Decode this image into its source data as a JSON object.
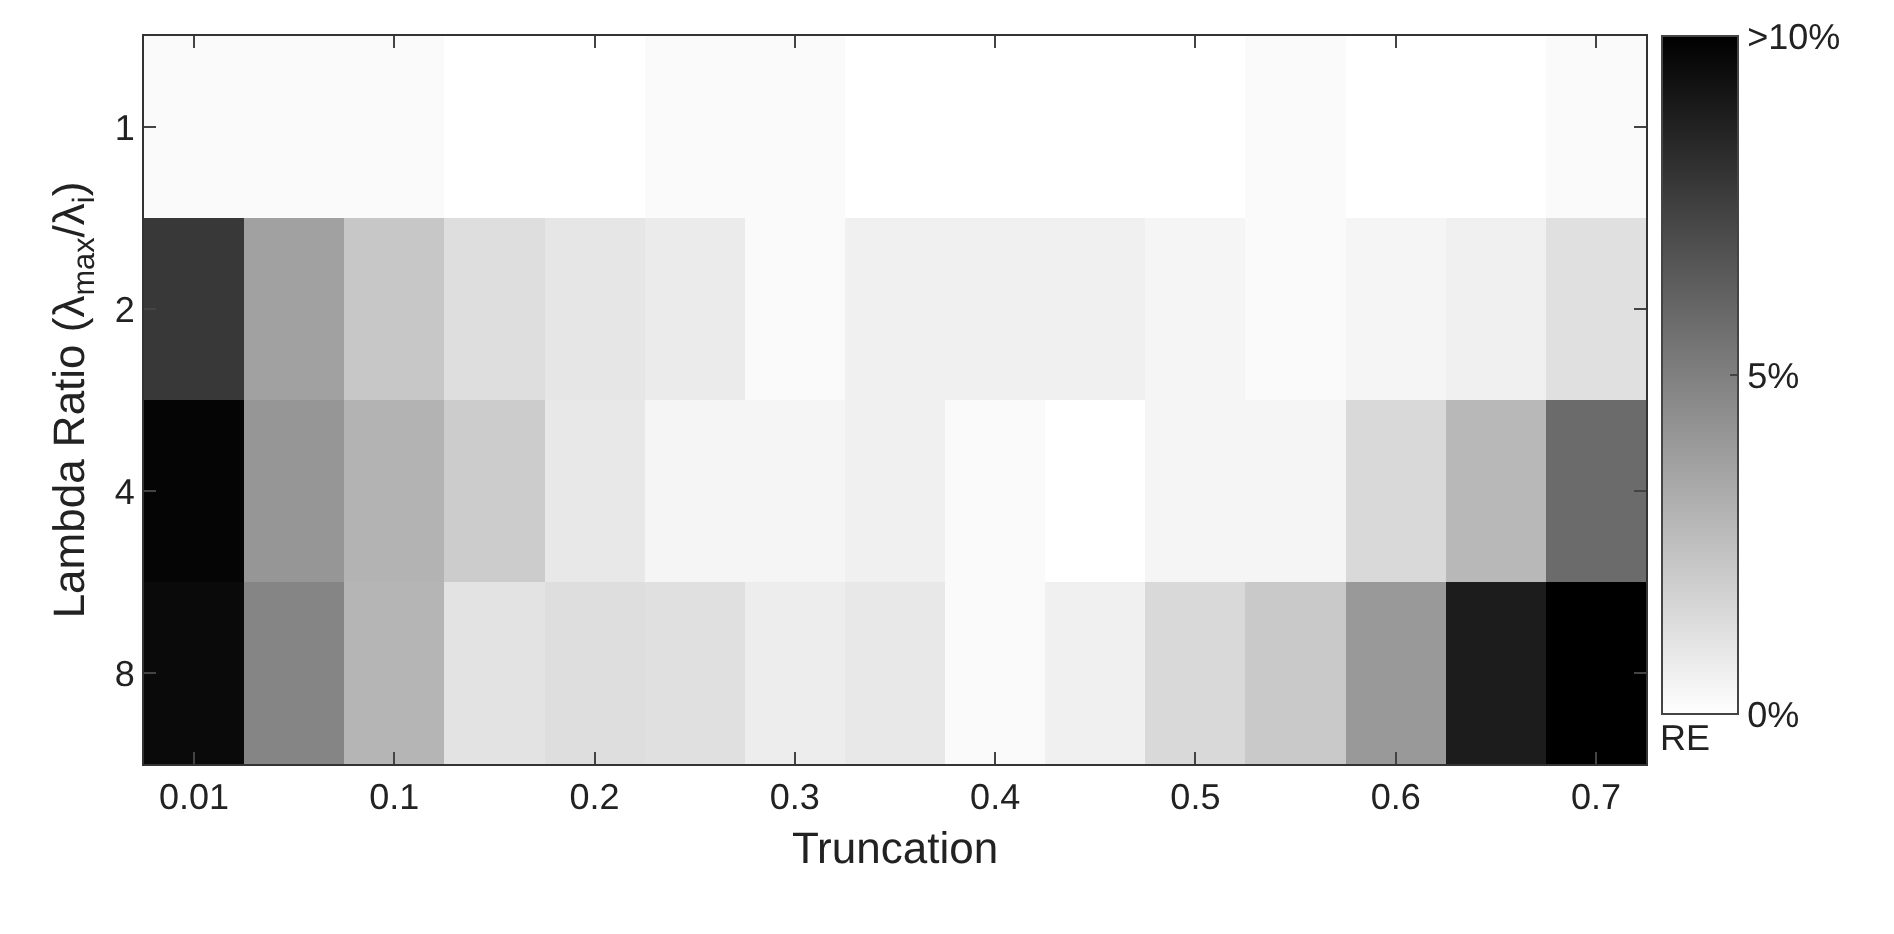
{
  "chart_data": {
    "type": "heatmap",
    "xlabel": "Truncation",
    "ylabel": "Lambda Ratio (λ$_{max}$/λ$_{i}$)",
    "clabel": "RE",
    "categories": [
      "0.01",
      null,
      "0.1",
      null,
      "0.2",
      null,
      "0.3",
      null,
      "0.4",
      null,
      "0.5",
      null,
      "0.6",
      null,
      "0.7"
    ],
    "y_categories": [
      "1",
      "2",
      "4",
      "8"
    ],
    "cells": [
      [
        0.2,
        0.2,
        0.2,
        0,
        0,
        0.2,
        0.2,
        0,
        0,
        0,
        0,
        0.2,
        0,
        0,
        0.2
      ],
      [
        7.8,
        3.7,
        2.2,
        1.3,
        1.0,
        0.8,
        0.2,
        0.6,
        0.6,
        0.6,
        0.4,
        0.2,
        0.4,
        0.6,
        1.2
      ],
      [
        9.8,
        4.1,
        3.0,
        2.0,
        0.9,
        0.4,
        0.4,
        0.6,
        0.2,
        0,
        0.4,
        0.4,
        1.5,
        2.8,
        5.8
      ],
      [
        9.6,
        4.8,
        2.9,
        1.1,
        1.3,
        1.2,
        0.7,
        0.9,
        0.2,
        0.6,
        1.5,
        2.1,
        4.0,
        8.9,
        10
      ]
    ],
    "clim": [
      0,
      10
    ],
    "cticks": [
      {
        "value": 0,
        "label": "0%"
      },
      {
        "value": 5,
        "label": "5%"
      },
      {
        "value": 10,
        "label": ">10%"
      }
    ]
  }
}
